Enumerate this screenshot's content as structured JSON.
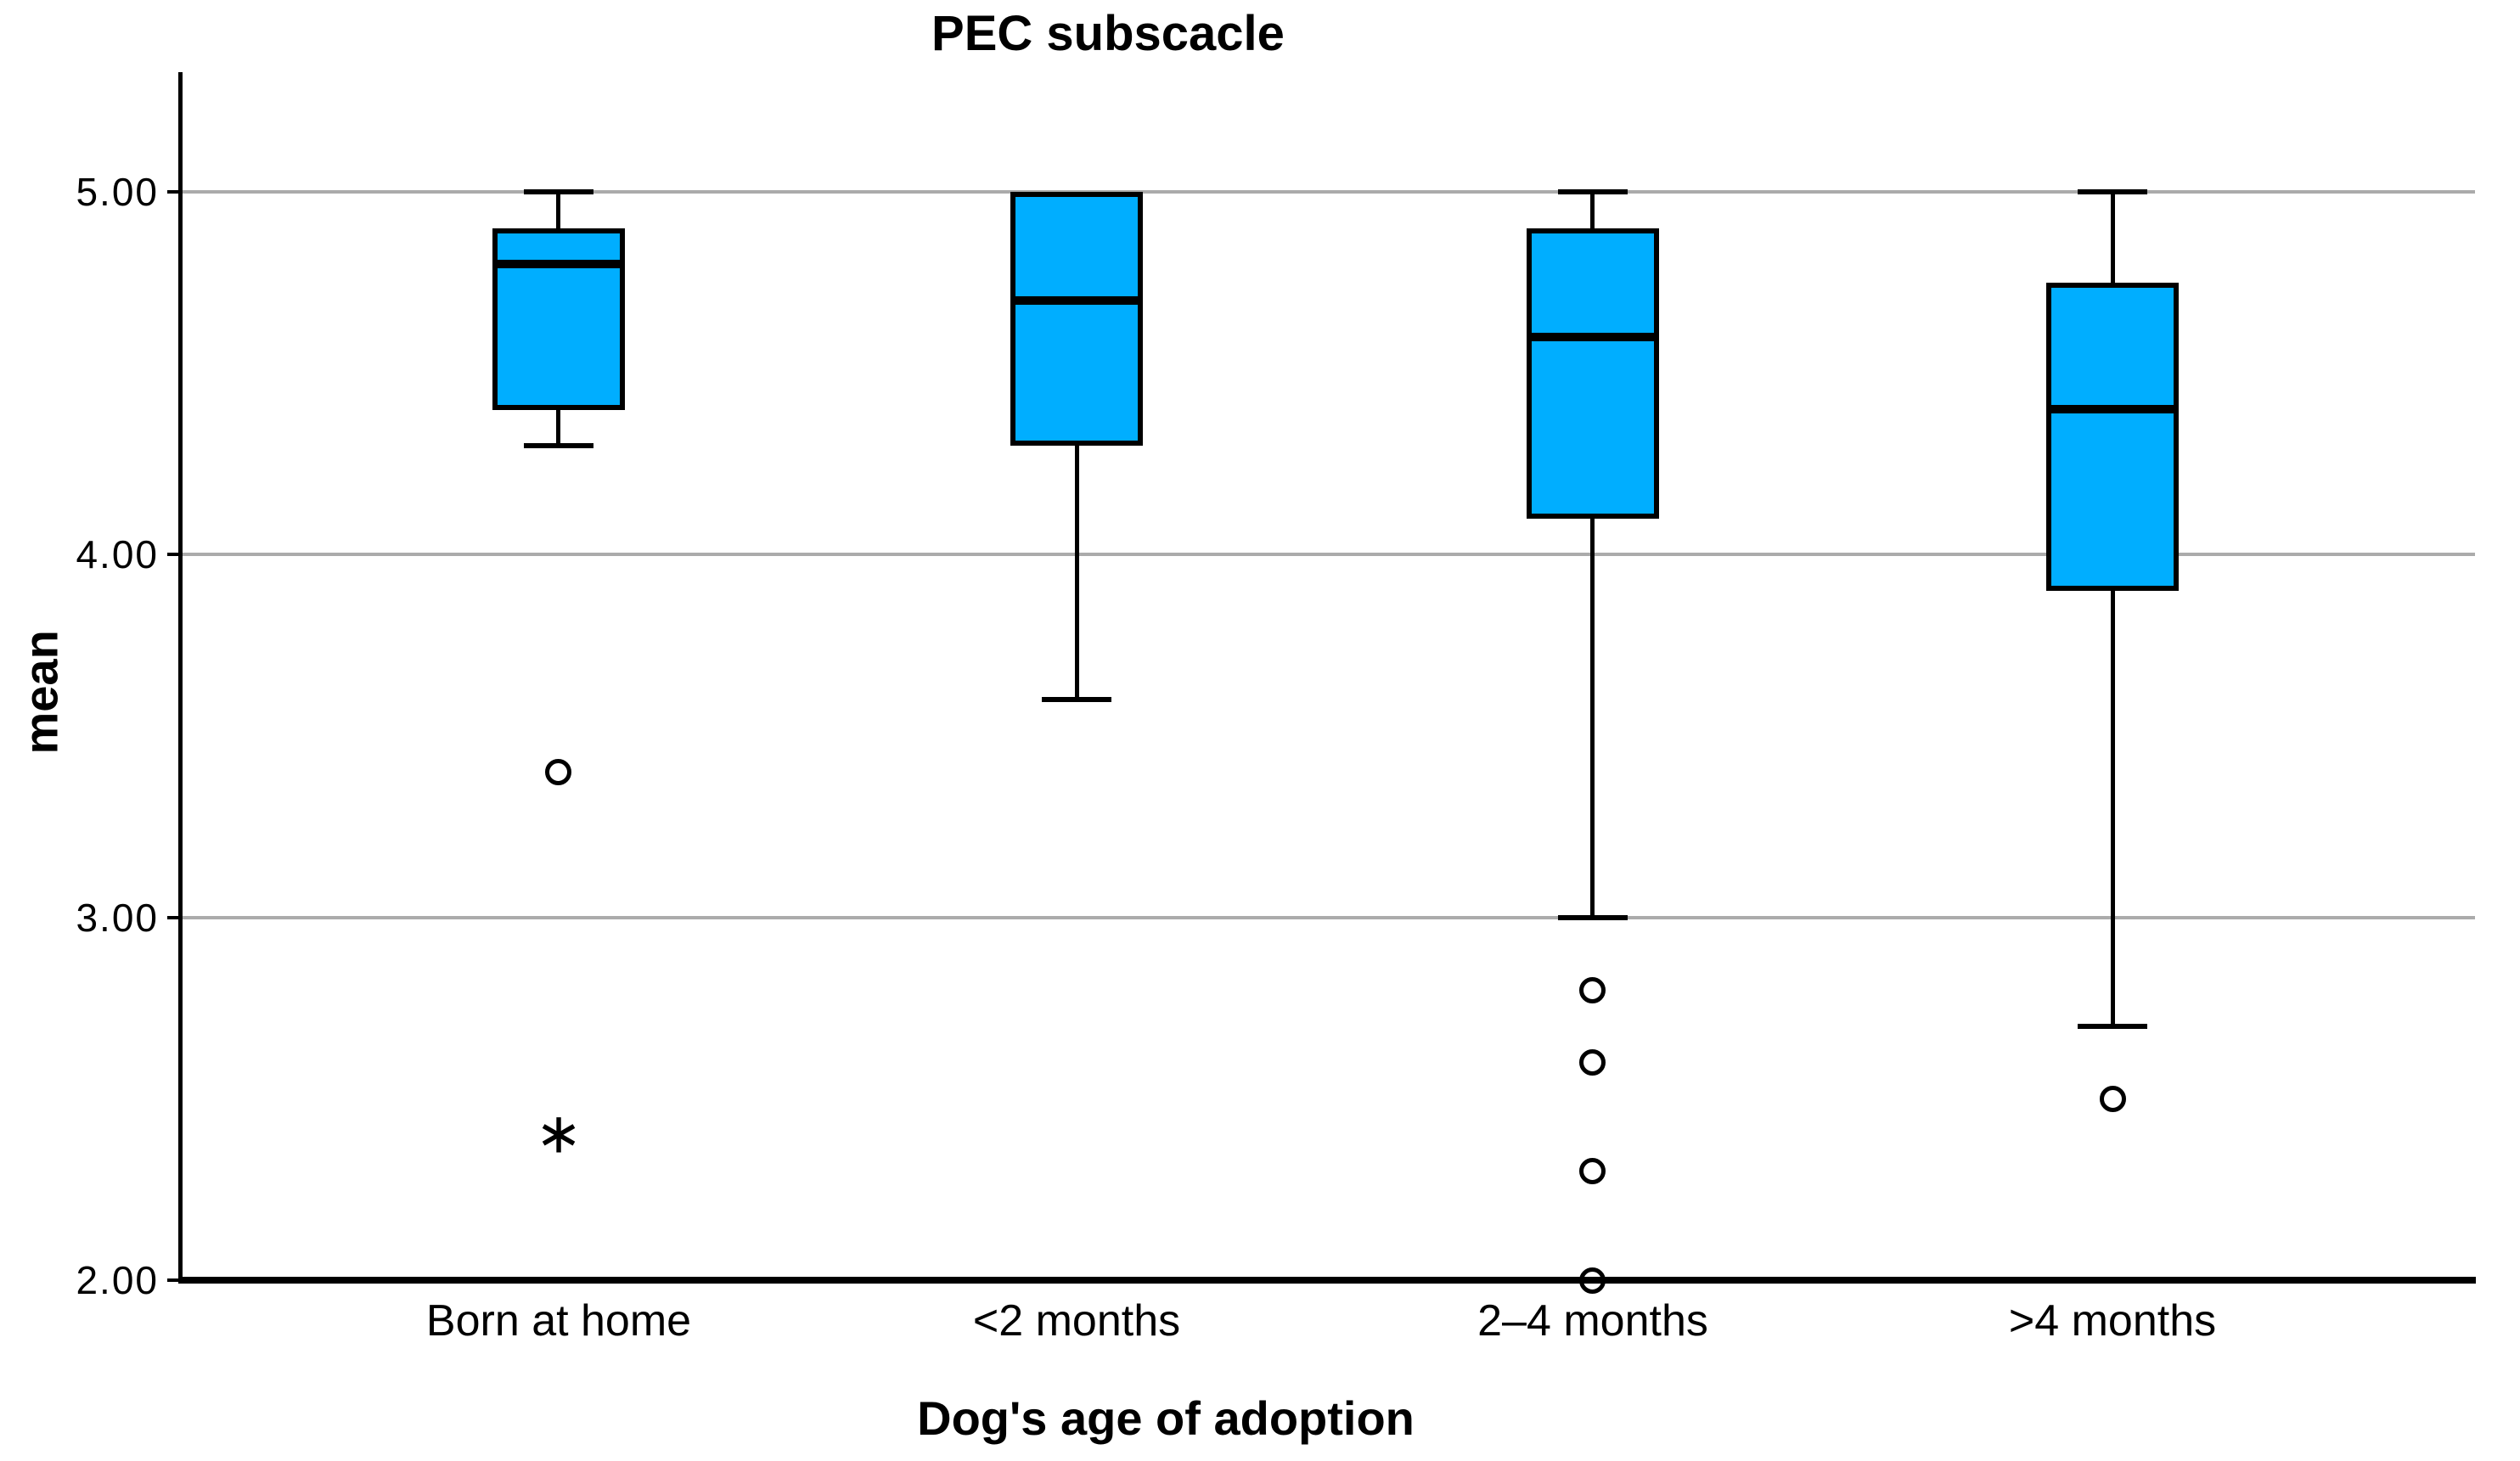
{
  "chart_data": {
    "type": "boxplot",
    "title": "PEC subscacle",
    "ylabel": "mean",
    "xlabel": "Dog's age of adoption",
    "axis": {
      "ymin": 2.0,
      "ymax": 5.33,
      "yticks": [
        {
          "label": "5.00",
          "value": 5.0
        },
        {
          "label": "4.00",
          "value": 4.0
        },
        {
          "label": "3.00",
          "value": 3.0
        },
        {
          "label": "2.00",
          "value": 2.0
        }
      ],
      "grid": true,
      "grid_color": "#ABABAB"
    },
    "categories": [
      "Born at home",
      "<2 months",
      "2–4 months",
      ">4 months"
    ],
    "series": [
      {
        "category": "Born at home",
        "q1": 4.4,
        "median": 4.8,
        "q3": 4.9,
        "whisker_low": 4.3,
        "whisker_high": 5.0,
        "outliers": [
          3.4
        ],
        "extremes": [
          2.4
        ]
      },
      {
        "category": "<2 months",
        "q1": 4.3,
        "median": 4.7,
        "q3": 5.0,
        "whisker_low": 3.6,
        "whisker_high": 5.0,
        "outliers": [],
        "extremes": []
      },
      {
        "category": "2–4 months",
        "q1": 4.1,
        "median": 4.6,
        "q3": 4.9,
        "whisker_low": 3.0,
        "whisker_high": 5.0,
        "outliers": [
          2.8,
          2.6,
          2.3,
          2.0
        ],
        "extremes": []
      },
      {
        "category": ">4 months",
        "q1": 3.9,
        "median": 4.4,
        "q3": 4.75,
        "whisker_low": 2.7,
        "whisker_high": 5.0,
        "outliers": [
          2.5
        ],
        "extremes": []
      }
    ],
    "markers": {
      "outlier_marker": "circle",
      "extreme_marker": "∗"
    },
    "colors": {
      "box_fill": "#00AEFF",
      "box_border": "#000000",
      "gridline": "#ABABAB",
      "background": "#FFFFFF"
    }
  }
}
